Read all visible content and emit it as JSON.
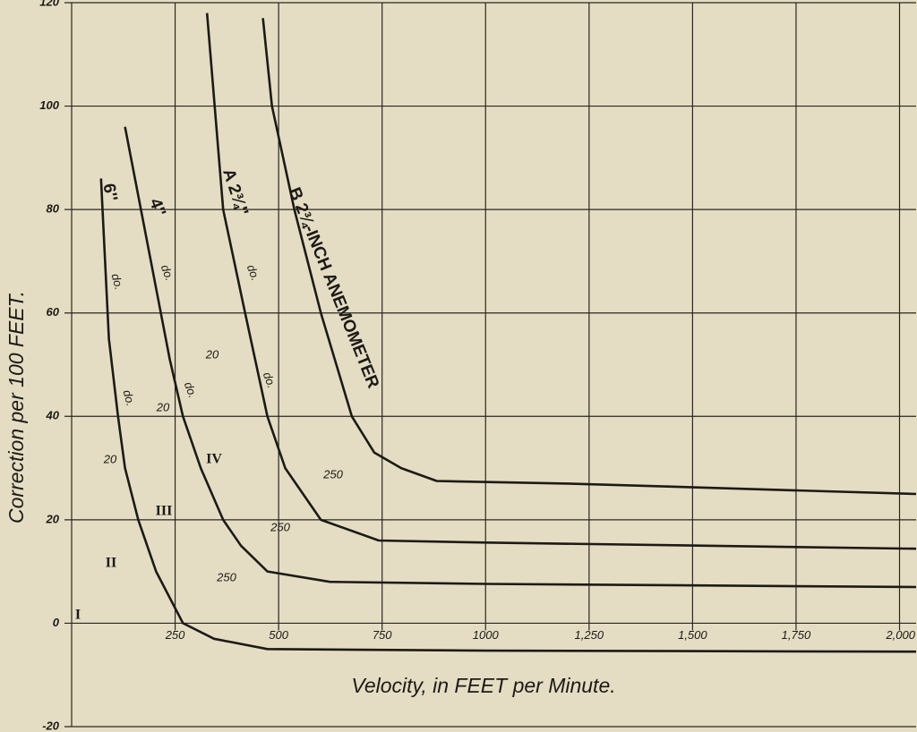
{
  "chart_data": {
    "type": "line",
    "ylabel": "Correction per 100 FEET.",
    "xlabel": "Velocity, in FEET per Minute.",
    "color": "#1c1a16",
    "grid": true,
    "xlim": [
      0,
      2040
    ],
    "ylim": [
      -20,
      120
    ],
    "xticks": [
      250,
      500,
      750,
      {
        "value": 1000,
        "label": "1000"
      },
      {
        "value": 1250,
        "label": "1,250"
      },
      {
        "value": 1500,
        "label": "1,500"
      },
      {
        "value": 1750,
        "label": "1,750"
      },
      {
        "value": 2000,
        "label": "2,000"
      }
    ],
    "yticks": [
      -20,
      0,
      20,
      40,
      60,
      80,
      100,
      120
    ],
    "series": [
      {
        "x": [
          71,
          90,
          112,
          129,
          161,
          204,
          269,
          344,
          473,
          1000,
          2040
        ],
        "values": [
          86,
          55,
          40,
          30,
          20,
          10,
          0,
          -3,
          -5,
          -5.3,
          -5.5
        ]
      },
      {
        "x": [
          129,
          237,
          269,
          312,
          366,
          409,
          473,
          624,
          1000,
          2040
        ],
        "values": [
          96,
          51,
          40,
          30,
          20,
          15,
          10,
          8,
          7.6,
          7
        ]
      },
      {
        "x": [
          327,
          366,
          419,
          473,
          516,
          602,
          742,
          1000,
          2040
        ],
        "values": [
          118,
          80,
          60,
          40,
          30,
          20,
          16,
          15.6,
          14.4
        ]
      },
      {
        "x": [
          462,
          484,
          538,
          602,
          677,
          731,
          796,
          882,
          1200,
          2040
        ],
        "values": [
          117,
          100,
          80,
          60,
          40,
          33,
          30,
          27.5,
          27,
          25
        ]
      }
    ],
    "annotations": [
      "6''",
      "do.",
      "do.",
      "20",
      "4''",
      "do.",
      "20",
      "do.",
      "20",
      "A 2¾''",
      "do.",
      "do.",
      "250",
      "B 2¾-INCH ANEMOMETER",
      "250",
      "250",
      "I",
      "II",
      "III",
      "IV"
    ]
  }
}
